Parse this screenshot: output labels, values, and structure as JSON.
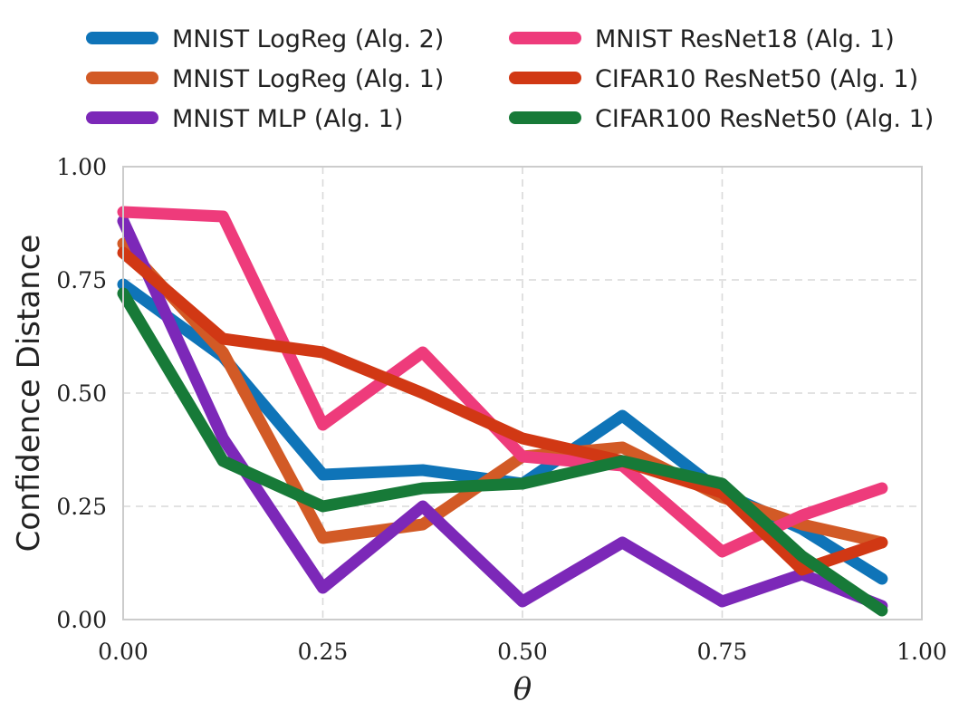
{
  "chart_data": {
    "type": "line",
    "title": "",
    "xlabel": "θ",
    "ylabel": "Confidence Distance",
    "xlim": [
      0.0,
      1.0
    ],
    "ylim": [
      0.0,
      1.0
    ],
    "xticks": [
      "0.00",
      "0.25",
      "0.50",
      "0.75",
      "1.00"
    ],
    "yticks": [
      "0.00",
      "0.25",
      "0.50",
      "0.75",
      "1.00"
    ],
    "xtick_values": [
      0.0,
      0.25,
      0.5,
      0.75,
      1.0
    ],
    "ytick_values": [
      0.0,
      0.25,
      0.5,
      0.75,
      1.0
    ],
    "grid": true,
    "legend_position": "top",
    "series": [
      {
        "name": "MNIST LogReg (Alg. 2)",
        "color": "#0f74b8",
        "x": [
          0.0,
          0.125,
          0.25,
          0.375,
          0.5,
          0.625,
          0.75,
          0.85,
          0.95
        ],
        "y": [
          0.74,
          0.58,
          0.32,
          0.33,
          0.3,
          0.45,
          0.28,
          0.2,
          0.09
        ]
      },
      {
        "name": "MNIST LogReg (Alg. 1)",
        "color": "#d25a26",
        "x": [
          0.0,
          0.125,
          0.25,
          0.375,
          0.5,
          0.625,
          0.75,
          0.85,
          0.95
        ],
        "y": [
          0.83,
          0.59,
          0.18,
          0.21,
          0.36,
          0.38,
          0.27,
          0.21,
          0.17
        ]
      },
      {
        "name": "MNIST MLP (Alg. 1)",
        "color": "#7c28b8",
        "x": [
          0.0,
          0.125,
          0.25,
          0.375,
          0.5,
          0.625,
          0.75,
          0.85,
          0.95
        ],
        "y": [
          0.88,
          0.4,
          0.07,
          0.25,
          0.04,
          0.17,
          0.04,
          0.1,
          0.03
        ]
      },
      {
        "name": "MNIST ResNet18 (Alg. 1)",
        "color": "#ee3b7b",
        "x": [
          0.0,
          0.125,
          0.25,
          0.375,
          0.5,
          0.625,
          0.75,
          0.85,
          0.95
        ],
        "y": [
          0.9,
          0.89,
          0.43,
          0.59,
          0.36,
          0.34,
          0.15,
          0.23,
          0.29
        ]
      },
      {
        "name": "CIFAR10 ResNet50 (Alg. 1)",
        "color": "#d13814",
        "x": [
          0.0,
          0.125,
          0.25,
          0.375,
          0.5,
          0.625,
          0.75,
          0.85,
          0.95
        ],
        "y": [
          0.81,
          0.62,
          0.59,
          0.5,
          0.4,
          0.35,
          0.28,
          0.11,
          0.17
        ]
      },
      {
        "name": "CIFAR100 ResNet50 (Alg. 1)",
        "color": "#177a38",
        "x": [
          0.0,
          0.125,
          0.25,
          0.375,
          0.5,
          0.625,
          0.75,
          0.85,
          0.95
        ],
        "y": [
          0.72,
          0.35,
          0.25,
          0.29,
          0.3,
          0.35,
          0.3,
          0.14,
          0.02
        ]
      }
    ]
  }
}
